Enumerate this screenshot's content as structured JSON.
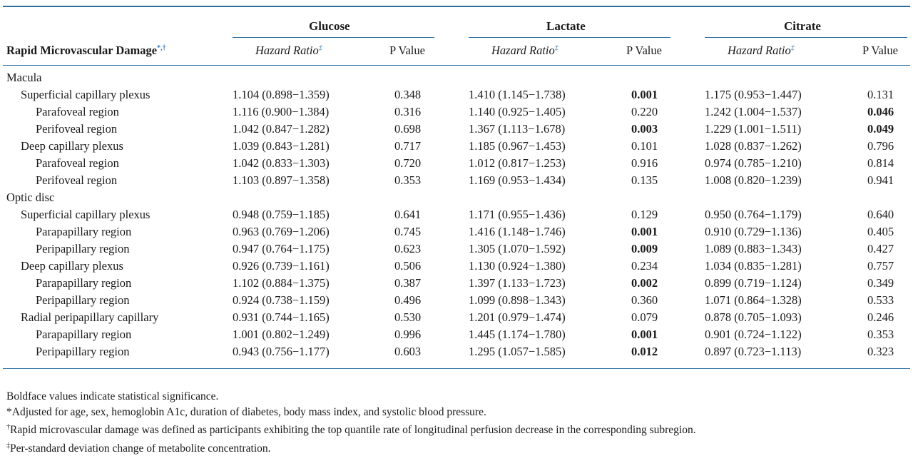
{
  "header": {
    "stub_label": "Rapid Microvascular Damage",
    "stub_marks": "*,†",
    "groups": [
      "Glucose",
      "Lactate",
      "Citrate"
    ],
    "hazard_ratio_label": "Hazard Ratio",
    "hazard_ratio_mark": "‡",
    "p_value_label": "P Value"
  },
  "rows": [
    {
      "label": "Macula",
      "level": 0
    },
    {
      "label": "Superficial capillary plexus",
      "level": 1,
      "cells": [
        "1.104 (0.898−1.359)",
        "0.348",
        "1.410 (1.145−1.738)",
        "0.001",
        "1.175 (0.953−1.447)",
        "0.131"
      ],
      "sig": [
        false,
        true,
        false
      ]
    },
    {
      "label": "Parafoveal region",
      "level": 2,
      "cells": [
        "1.116 (0.900−1.384)",
        "0.316",
        "1.140 (0.925−1.405)",
        "0.220",
        "1.242 (1.004−1.537)",
        "0.046"
      ],
      "sig": [
        false,
        false,
        true
      ]
    },
    {
      "label": "Perifoveal region",
      "level": 2,
      "cells": [
        "1.042 (0.847−1.282)",
        "0.698",
        "1.367 (1.113−1.678)",
        "0.003",
        "1.229 (1.001−1.511)",
        "0.049"
      ],
      "sig": [
        false,
        true,
        true
      ]
    },
    {
      "label": "Deep capillary plexus",
      "level": 1,
      "cells": [
        "1.039 (0.843−1.281)",
        "0.717",
        "1.185 (0.967−1.453)",
        "0.101",
        "1.028 (0.837−1.262)",
        "0.796"
      ],
      "sig": [
        false,
        false,
        false
      ]
    },
    {
      "label": "Parafoveal region",
      "level": 2,
      "cells": [
        "1.042 (0.833−1.303)",
        "0.720",
        "1.012 (0.817−1.253)",
        "0.916",
        "0.974 (0.785−1.210)",
        "0.814"
      ],
      "sig": [
        false,
        false,
        false
      ]
    },
    {
      "label": "Perifoveal region",
      "level": 2,
      "cells": [
        "1.103 (0.897−1.358)",
        "0.353",
        "1.169 (0.953−1.434)",
        "0.135",
        "1.008 (0.820−1.239)",
        "0.941"
      ],
      "sig": [
        false,
        false,
        false
      ]
    },
    {
      "label": "Optic disc",
      "level": 0
    },
    {
      "label": "Superficial capillary plexus",
      "level": 1,
      "cells": [
        "0.948 (0.759−1.185)",
        "0.641",
        "1.171 (0.955−1.436)",
        "0.129",
        "0.950 (0.764−1.179)",
        "0.640"
      ],
      "sig": [
        false,
        false,
        false
      ]
    },
    {
      "label": "Parapapillary region",
      "level": 2,
      "cells": [
        "0.963 (0.769−1.206)",
        "0.745",
        "1.416 (1.148−1.746)",
        "0.001",
        "0.910 (0.729−1.136)",
        "0.405"
      ],
      "sig": [
        false,
        true,
        false
      ]
    },
    {
      "label": "Peripapillary region",
      "level": 2,
      "cells": [
        "0.947 (0.764−1.175)",
        "0.623",
        "1.305 (1.070−1.592)",
        "0.009",
        "1.089 (0.883−1.343)",
        "0.427"
      ],
      "sig": [
        false,
        true,
        false
      ]
    },
    {
      "label": "Deep capillary plexus",
      "level": 1,
      "cells": [
        "0.926 (0.739−1.161)",
        "0.506",
        "1.130 (0.924−1.380)",
        "0.234",
        "1.034 (0.835−1.281)",
        "0.757"
      ],
      "sig": [
        false,
        false,
        false
      ]
    },
    {
      "label": "Parapapillary region",
      "level": 2,
      "cells": [
        "1.102 (0.884−1.375)",
        "0.387",
        "1.397 (1.133−1.723)",
        "0.002",
        "0.899 (0.719−1.124)",
        "0.349"
      ],
      "sig": [
        false,
        true,
        false
      ]
    },
    {
      "label": "Peripapillary region",
      "level": 2,
      "cells": [
        "0.924 (0.738−1.159)",
        "0.496",
        "1.099 (0.898−1.343)",
        "0.360",
        "1.071 (0.864−1.328)",
        "0.533"
      ],
      "sig": [
        false,
        false,
        false
      ]
    },
    {
      "label": "Radial peripapillary capillary",
      "level": 1,
      "cells": [
        "0.931 (0.744−1.165)",
        "0.530",
        "1.201 (0.979−1.474)",
        "0.079",
        "0.878 (0.705−1.093)",
        "0.246"
      ],
      "sig": [
        false,
        false,
        false
      ]
    },
    {
      "label": "Parapapillary region",
      "level": 2,
      "cells": [
        "1.001 (0.802−1.249)",
        "0.996",
        "1.445 (1.174−1.780)",
        "0.001",
        "0.901 (0.724−1.122)",
        "0.353"
      ],
      "sig": [
        false,
        true,
        false
      ]
    },
    {
      "label": "Peripapillary region",
      "level": 2,
      "cells": [
        "0.943 (0.756−1.177)",
        "0.603",
        "1.295 (1.057−1.585)",
        "0.012",
        "0.897 (0.723−1.113)",
        "0.323"
      ],
      "sig": [
        false,
        true,
        false
      ]
    }
  ],
  "footnotes": [
    {
      "mark": "",
      "text": "Boldface values indicate statistical significance."
    },
    {
      "mark": "*",
      "text": "Adjusted for age, sex, hemoglobin A1c, duration of diabetes, body mass index, and systolic blood pressure."
    },
    {
      "mark": "†",
      "text": "Rapid microvascular damage was defined as participants exhibiting the top quantile rate of longitudinal perfusion decrease in the corresponding subregion."
    },
    {
      "mark": "‡",
      "text": "Per-standard deviation change of metabolite concentration."
    }
  ],
  "colors": {
    "rule": "#2c6ea3",
    "mark": "#3a7bb5"
  }
}
